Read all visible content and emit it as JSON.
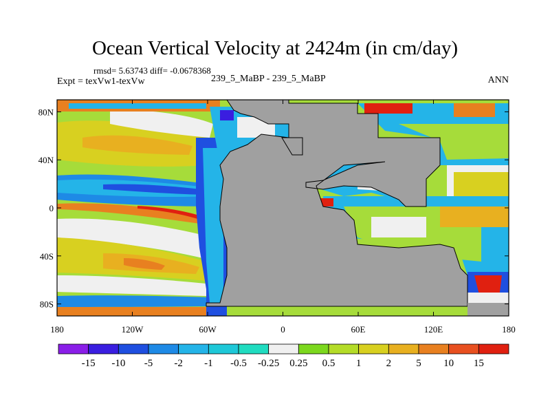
{
  "chart_data": {
    "type": "heatmap",
    "title": "Ocean Vertical Velocity at 2424m (in cm/day)",
    "stats_text": "rmsd= 5.63743 diff= -0.0678368",
    "left_label": "Expt = texVw1-texVw",
    "center_label": "239_5_MaBP - 239_5_MaBP",
    "right_label": "ANN",
    "y_ticks": [
      "80N",
      "40N",
      "0",
      "40S",
      "80S"
    ],
    "y_values": [
      80,
      40,
      0,
      -40,
      -80
    ],
    "x_ticks": [
      "180",
      "120W",
      "60W",
      "0",
      "60E",
      "120E",
      "180"
    ],
    "x_values": [
      -180,
      -120,
      -60,
      0,
      60,
      120,
      180
    ],
    "xlim": [
      -180,
      180
    ],
    "ylim": [
      -90,
      90
    ],
    "colorbar": {
      "labels": [
        "-15",
        "-10",
        "-5",
        "-2",
        "-1",
        "-0.5",
        "-0.25",
        "0.25",
        "0.5",
        "1",
        "2",
        "5",
        "10",
        "15"
      ],
      "colors": [
        "#8a1ee8",
        "#3a1ee0",
        "#1f4fe0",
        "#1e8ae6",
        "#24b4e8",
        "#1ec8d8",
        "#20dcc0",
        "#f0f0f0",
        "#7cd81e",
        "#b4dc28",
        "#d8d020",
        "#e8b020",
        "#e88020",
        "#e85020",
        "#e02010"
      ]
    },
    "land_color": "#a0a0a0",
    "background_field": "#a6dc3a"
  }
}
